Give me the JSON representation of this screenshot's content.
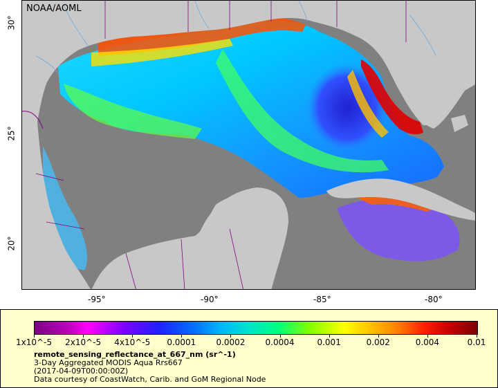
{
  "map": {
    "agency": "NOAA/AOML",
    "lon_ticks": [
      "-95°",
      "-90°",
      "-85°",
      "-80°"
    ],
    "lat_ticks": [
      "30°",
      "25°",
      "20°"
    ],
    "colors": {
      "land": "#c8c8c8",
      "no_data_ocean": "#808080",
      "border": "#800080",
      "river": "#6fa8dc"
    }
  },
  "legend": {
    "labels": [
      "1x10^-5",
      "2x10^-5",
      "4x10^-5",
      "0.0001",
      "0.0002",
      "0.0004",
      "0.001",
      "0.002",
      "0.004",
      "0.01"
    ],
    "title": "remote_sensing_reflectance_at_667_nm (sr^-1)",
    "line1": "3-Day Aggregated MODIS Aqua Rrs667",
    "line2": "(2017-04-09T00:00:00Z)",
    "line3": "Data courtesy of CoastWatch, Carib. and GoM Regional Node"
  }
}
